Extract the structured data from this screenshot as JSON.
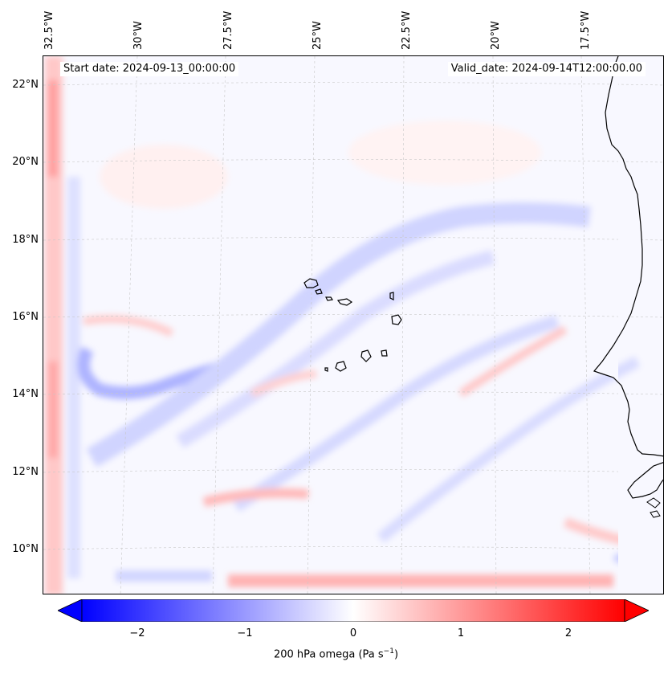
{
  "map": {
    "start_date": "Start date: 2024-09-13_00:00:00",
    "valid_date": "Valid_date: 2024-09-14T12:00:00.00",
    "lon_labels": [
      "32.5°W",
      "30°W",
      "27.5°W",
      "25°W",
      "22.5°W",
      "20°W",
      "17.5°W"
    ],
    "lat_labels": [
      "22°N",
      "20°N",
      "18°N",
      "16°N",
      "14°N",
      "12°N",
      "10°N"
    ],
    "field_colors": {
      "negative": "#0000ff",
      "zero": "#ffffff",
      "positive": "#ff0000",
      "coast": "#000000"
    }
  },
  "colorbar": {
    "ticks": [
      "−2",
      "−1",
      "0",
      "1",
      "2"
    ],
    "label_prefix": "200 hPa omega (Pa s",
    "label_exp": "−1",
    "label_suffix": ")",
    "min": -2.7,
    "max": 2.7
  }
}
